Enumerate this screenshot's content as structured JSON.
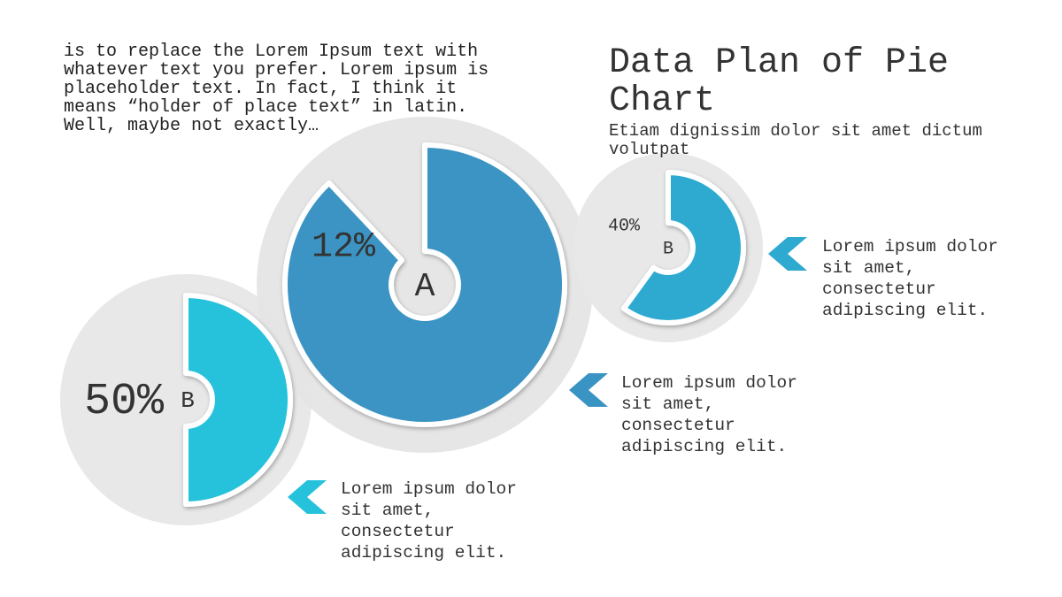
{
  "intro": "is to replace the Lorem Ipsum text with whatever text you prefer. Lorem ipsum is placeholder text. In fact, I think it means “holder of place text” in latin. Well, maybe not exactly…",
  "title": "Data Plan of Pie Chart",
  "subtitle": "Etiam dignissim dolor sit amet dictum volutpat",
  "chart_data": [
    {
      "type": "donut",
      "center_label": "A",
      "value": 12,
      "value_label": "12%",
      "color": "#3a94c3"
    },
    {
      "type": "donut",
      "center_label": "B",
      "value": 50,
      "value_label": "50%",
      "color": "#26c2db"
    },
    {
      "type": "donut",
      "center_label": "B",
      "value": 40,
      "value_label": "40%",
      "color": "#2eaad1"
    }
  ],
  "callouts": [
    "Lorem ipsum dolor sit amet, consectetur adipiscing elit.",
    "Lorem ipsum dolor sit amet, consectetur adipiscing elit.",
    "Lorem ipsum dolor sit amet, consectetur adipiscing elit."
  ]
}
